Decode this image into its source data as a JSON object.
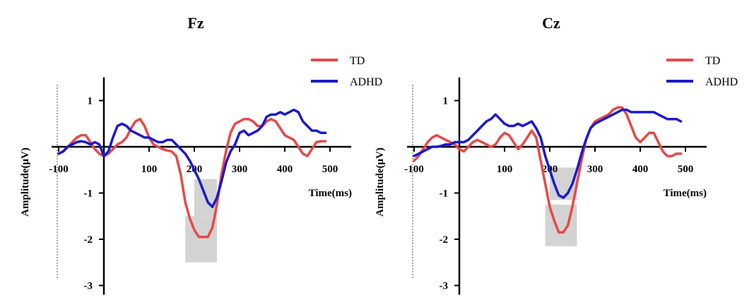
{
  "chart_data": [
    {
      "type": "line",
      "title": "Fz",
      "xlabel": "Time(ms)",
      "ylabel": "Amplitude(μV)",
      "xlim": [
        -100,
        500
      ],
      "ylim": [
        -3,
        1
      ],
      "xticks": [
        -100,
        100,
        200,
        300,
        400,
        500
      ],
      "yticks": [
        1,
        -1,
        -2,
        -3
      ],
      "legend": "top-right",
      "grid": false,
      "series": [
        {
          "name": "TD",
          "color": "#e84848",
          "x": [
            -100,
            -90,
            -80,
            -70,
            -60,
            -50,
            -40,
            -30,
            -20,
            -10,
            0,
            10,
            20,
            30,
            40,
            50,
            60,
            70,
            80,
            90,
            100,
            110,
            120,
            130,
            140,
            150,
            160,
            170,
            180,
            190,
            200,
            210,
            220,
            230,
            240,
            250,
            260,
            270,
            280,
            290,
            300,
            310,
            320,
            330,
            340,
            350,
            360,
            370,
            380,
            390,
            400,
            410,
            420,
            430,
            440,
            450,
            460,
            470,
            480,
            490
          ],
          "values": [
            -0.15,
            -0.1,
            0.0,
            0.1,
            0.2,
            0.25,
            0.25,
            0.1,
            -0.05,
            -0.15,
            -0.2,
            -0.15,
            -0.05,
            0.05,
            0.1,
            0.2,
            0.4,
            0.55,
            0.6,
            0.45,
            0.2,
            0.05,
            0.0,
            -0.05,
            -0.08,
            -0.1,
            -0.2,
            -0.6,
            -1.2,
            -1.55,
            -1.8,
            -1.95,
            -1.95,
            -1.95,
            -1.75,
            -1.25,
            -0.6,
            -0.1,
            0.3,
            0.5,
            0.55,
            0.6,
            0.6,
            0.55,
            0.45,
            0.45,
            0.55,
            0.6,
            0.55,
            0.4,
            0.25,
            0.2,
            0.15,
            0.0,
            -0.15,
            -0.2,
            -0.05,
            0.1,
            0.12,
            0.12
          ]
        },
        {
          "name": "ADHD",
          "color": "#1a1acc",
          "x": [
            -100,
            -90,
            -80,
            -70,
            -60,
            -50,
            -40,
            -30,
            -20,
            -10,
            0,
            10,
            20,
            30,
            40,
            50,
            60,
            70,
            80,
            90,
            100,
            110,
            120,
            130,
            140,
            150,
            160,
            170,
            180,
            190,
            200,
            210,
            220,
            230,
            240,
            250,
            260,
            270,
            280,
            290,
            300,
            310,
            320,
            330,
            340,
            350,
            360,
            370,
            380,
            390,
            400,
            410,
            420,
            430,
            440,
            450,
            460,
            470,
            480,
            490
          ],
          "values": [
            -0.15,
            -0.1,
            0.0,
            0.05,
            0.1,
            0.12,
            0.1,
            0.05,
            0.1,
            0.05,
            -0.2,
            -0.1,
            0.2,
            0.45,
            0.5,
            0.45,
            0.35,
            0.3,
            0.25,
            0.2,
            0.2,
            0.15,
            0.1,
            0.1,
            0.15,
            0.15,
            0.05,
            -0.05,
            -0.15,
            -0.3,
            -0.5,
            -0.7,
            -0.95,
            -1.2,
            -1.3,
            -1.1,
            -0.75,
            -0.35,
            -0.1,
            0.05,
            0.3,
            0.35,
            0.25,
            0.3,
            0.35,
            0.45,
            0.65,
            0.7,
            0.7,
            0.75,
            0.7,
            0.75,
            0.8,
            0.75,
            0.55,
            0.45,
            0.35,
            0.35,
            0.3,
            0.3
          ]
        }
      ],
      "highlight_boxes": [
        {
          "series": "TD",
          "x_range": [
            180,
            250
          ],
          "y_range": [
            -2.5,
            -1.5
          ],
          "color": "#d3d3d3"
        },
        {
          "series": "ADHD",
          "x_range": [
            200,
            250
          ],
          "y_range": [
            -1.5,
            -0.7
          ],
          "color": "#d3d3d3"
        }
      ]
    },
    {
      "type": "line",
      "title": "Cz",
      "xlabel": "Time(ms)",
      "ylabel": "Amplitude(μV)",
      "xlim": [
        -100,
        500
      ],
      "ylim": [
        -3,
        1
      ],
      "xticks": [
        -100,
        100,
        200,
        300,
        400,
        500
      ],
      "yticks": [
        1,
        -1,
        -2,
        -3
      ],
      "legend": "top-right",
      "grid": false,
      "series": [
        {
          "name": "TD",
          "color": "#e84848",
          "x": [
            -100,
            -90,
            -80,
            -70,
            -60,
            -50,
            -40,
            -30,
            -20,
            -10,
            0,
            10,
            20,
            30,
            40,
            50,
            60,
            70,
            80,
            90,
            100,
            110,
            120,
            130,
            140,
            150,
            160,
            170,
            180,
            190,
            200,
            210,
            220,
            230,
            240,
            250,
            260,
            270,
            280,
            290,
            300,
            310,
            320,
            330,
            340,
            350,
            360,
            370,
            380,
            390,
            400,
            410,
            420,
            430,
            440,
            450,
            460,
            470,
            480,
            490
          ],
          "values": [
            -0.3,
            -0.2,
            -0.05,
            0.1,
            0.2,
            0.25,
            0.2,
            0.15,
            0.1,
            0.05,
            -0.05,
            -0.1,
            0.0,
            0.1,
            0.15,
            0.1,
            0.05,
            0.0,
            0.05,
            0.2,
            0.3,
            0.25,
            0.1,
            -0.05,
            0.05,
            0.2,
            0.35,
            0.2,
            -0.3,
            -0.8,
            -1.3,
            -1.6,
            -1.85,
            -1.85,
            -1.7,
            -1.3,
            -0.8,
            -0.3,
            0.15,
            0.4,
            0.55,
            0.6,
            0.65,
            0.7,
            0.8,
            0.85,
            0.85,
            0.7,
            0.45,
            0.2,
            0.1,
            0.2,
            0.3,
            0.3,
            0.1,
            -0.1,
            -0.2,
            -0.2,
            -0.15,
            -0.15
          ]
        },
        {
          "name": "ADHD",
          "color": "#1a1acc",
          "x": [
            -100,
            -90,
            -80,
            -70,
            -60,
            -50,
            -40,
            -30,
            -20,
            -10,
            0,
            10,
            20,
            30,
            40,
            50,
            60,
            70,
            80,
            90,
            100,
            110,
            120,
            130,
            140,
            150,
            160,
            170,
            180,
            190,
            200,
            210,
            220,
            230,
            240,
            250,
            260,
            270,
            280,
            290,
            300,
            310,
            320,
            330,
            340,
            350,
            360,
            370,
            380,
            390,
            400,
            410,
            420,
            430,
            440,
            450,
            460,
            470,
            480,
            490
          ],
          "values": [
            -0.2,
            -0.15,
            -0.1,
            -0.05,
            0.0,
            0.0,
            0.02,
            0.05,
            0.05,
            0.1,
            0.1,
            0.1,
            0.15,
            0.25,
            0.35,
            0.45,
            0.55,
            0.6,
            0.7,
            0.6,
            0.5,
            0.45,
            0.45,
            0.5,
            0.45,
            0.5,
            0.55,
            0.4,
            0.2,
            -0.2,
            -0.5,
            -0.8,
            -1.05,
            -1.1,
            -1.0,
            -0.8,
            -0.5,
            -0.15,
            0.15,
            0.4,
            0.5,
            0.55,
            0.6,
            0.65,
            0.7,
            0.75,
            0.8,
            0.8,
            0.75,
            0.75,
            0.75,
            0.75,
            0.75,
            0.75,
            0.7,
            0.65,
            0.6,
            0.6,
            0.6,
            0.55
          ]
        }
      ],
      "highlight_boxes": [
        {
          "series": "TD",
          "x_range": [
            190,
            260
          ],
          "y_range": [
            -2.15,
            -1.25
          ],
          "color": "#d3d3d3"
        },
        {
          "series": "ADHD",
          "x_range": [
            200,
            260
          ],
          "y_range": [
            -1.15,
            -0.45
          ],
          "color": "#d3d3d3"
        }
      ]
    }
  ]
}
